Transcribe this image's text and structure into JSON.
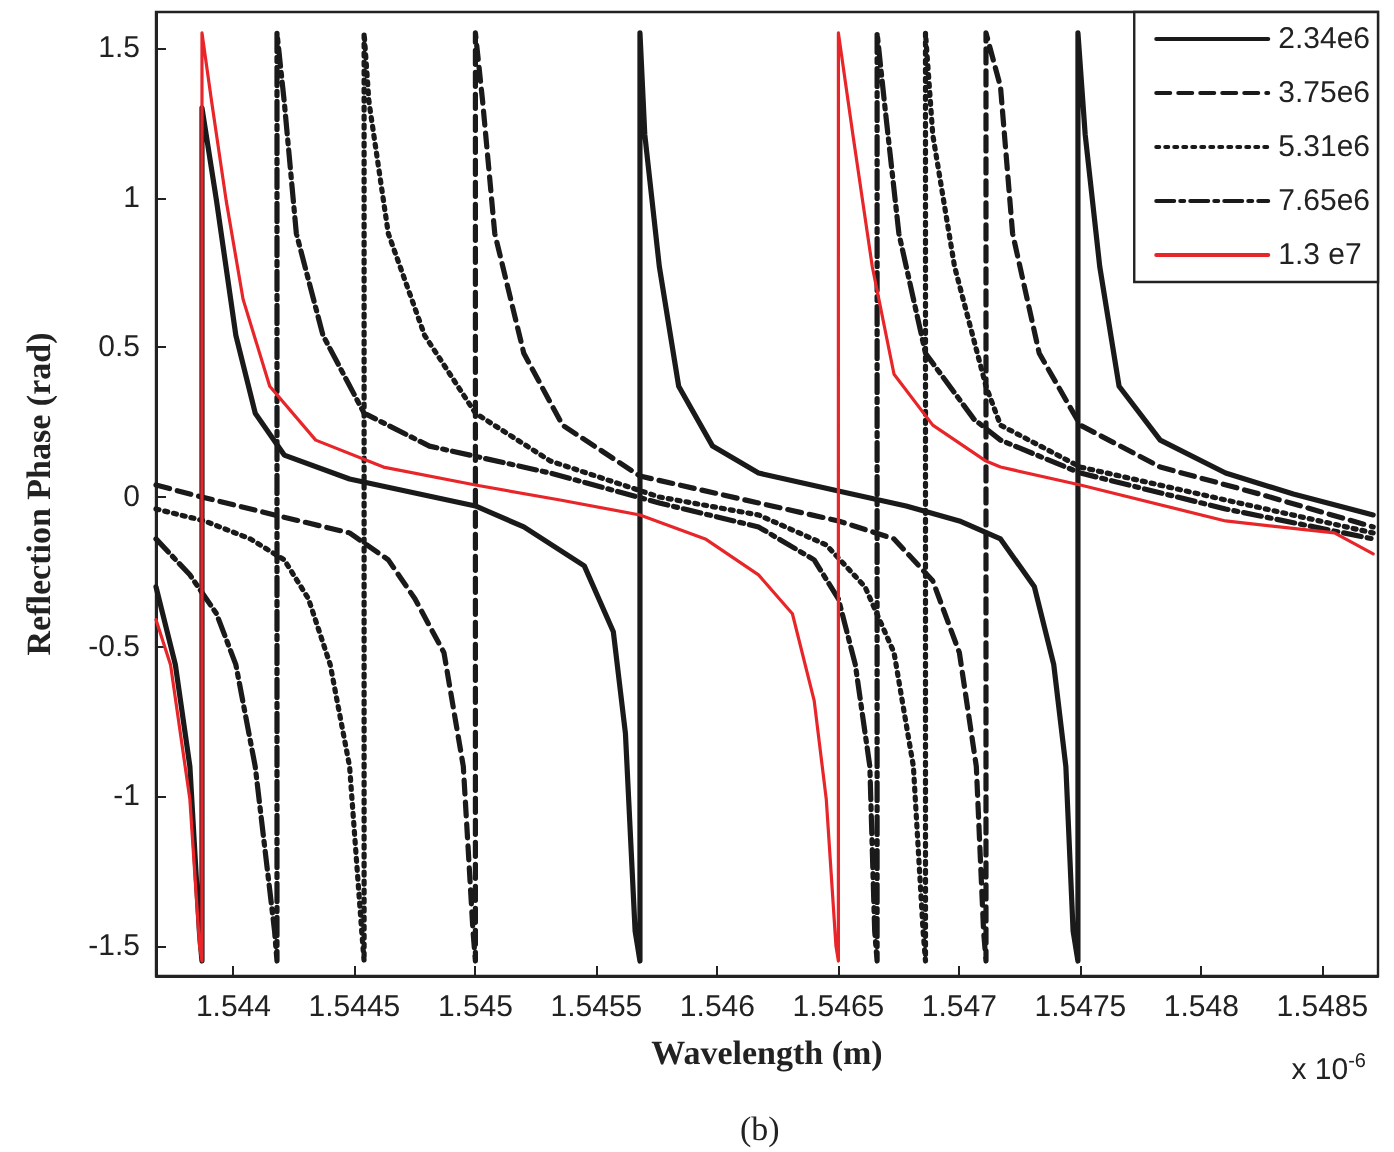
{
  "chart_data": {
    "type": "line",
    "xlabel": "Wavelength (m)",
    "ylabel": "Reflection Phase (rad)",
    "annotations": [
      "x 10$^{-6}$",
      "(b)"
    ],
    "xlim": [
      1.54368,
      1.54873
    ],
    "ylim": [
      -1.6,
      1.62
    ],
    "xticks": [
      1.544,
      1.5445,
      1.545,
      1.5455,
      1.546,
      1.5465,
      1.547,
      1.5475,
      1.548,
      1.5485
    ],
    "yticks": [
      -1.5,
      -1,
      -0.5,
      0,
      0.5,
      1,
      1.5
    ],
    "grid": false,
    "legend": "top right",
    "marker": "none",
    "series": [
      {
        "name": "2.34e6",
        "color": "#1a1a1a",
        "line_style": "solid",
        "x": [
          1.54368,
          1.54376,
          1.54382,
          1.54386,
          1.54387,
          1.54387,
          1.54393,
          1.54401,
          1.54409,
          1.54421,
          1.54448,
          1.545,
          1.5452,
          1.54545,
          1.54557,
          1.54562,
          1.54566,
          1.54568,
          1.54568,
          1.5457,
          1.54576,
          1.54584,
          1.54598,
          1.54617,
          1.5465,
          1.54678,
          1.547,
          1.54717,
          1.54731,
          1.54739,
          1.54744,
          1.54747,
          1.54749,
          1.54749,
          1.54752,
          1.54758,
          1.54766,
          1.54783,
          1.5481,
          1.54838,
          1.54871
        ],
        "values": [
          -0.3,
          -0.56,
          -0.9,
          -1.46,
          -1.55,
          1.3,
          0.99,
          0.54,
          0.28,
          0.14,
          0.06,
          -0.03,
          -0.1,
          -0.23,
          -0.45,
          -0.79,
          -1.45,
          -1.55,
          1.55,
          1.21,
          0.77,
          0.37,
          0.17,
          0.08,
          0.02,
          -0.03,
          -0.08,
          -0.14,
          -0.3,
          -0.56,
          -0.9,
          -1.45,
          -1.55,
          1.55,
          1.21,
          0.77,
          0.37,
          0.19,
          0.08,
          0.01,
          -0.06
        ]
      },
      {
        "name": "3.75e6",
        "color": "#1a1a1a",
        "line_style": "dashed",
        "x": [
          1.54368,
          1.54382,
          1.54417,
          1.54448,
          1.54464,
          1.54475,
          1.54487,
          1.54495,
          1.54499,
          1.545,
          1.545,
          1.54503,
          1.54508,
          1.5452,
          1.54536,
          1.54568,
          1.54617,
          1.5465,
          1.54673,
          1.54689,
          1.547,
          1.54707,
          1.5471,
          1.54711,
          1.54711,
          1.54717,
          1.54722,
          1.54733,
          1.5475,
          1.54783,
          1.54824,
          1.54871
        ],
        "values": [
          0.04,
          0.01,
          -0.06,
          -0.12,
          -0.21,
          -0.34,
          -0.52,
          -0.9,
          -1.45,
          -1.55,
          1.55,
          1.32,
          0.88,
          0.48,
          0.24,
          0.07,
          -0.02,
          -0.08,
          -0.14,
          -0.28,
          -0.52,
          -0.9,
          -1.45,
          -1.55,
          1.55,
          1.37,
          0.88,
          0.48,
          0.24,
          0.1,
          0.01,
          -0.1
        ]
      },
      {
        "name": "5.31e6",
        "color": "#1a1a1a",
        "line_style": "dotted",
        "x": [
          1.54368,
          1.54388,
          1.54407,
          1.54421,
          1.54431,
          1.5444,
          1.54448,
          1.54453,
          1.54454,
          1.54454,
          1.54456,
          1.54464,
          1.54479,
          1.545,
          1.54531,
          1.54576,
          1.54617,
          1.54645,
          1.54661,
          1.54673,
          1.54681,
          1.54685,
          1.54686,
          1.54686,
          1.54689,
          1.54698,
          1.54711,
          1.54717,
          1.5475,
          1.5481,
          1.54871
        ],
        "values": [
          -0.04,
          -0.08,
          -0.14,
          -0.21,
          -0.34,
          -0.56,
          -0.9,
          -1.45,
          -1.55,
          1.55,
          1.32,
          0.88,
          0.54,
          0.28,
          0.12,
          0,
          -0.06,
          -0.16,
          -0.3,
          -0.52,
          -0.9,
          -1.45,
          -1.55,
          1.55,
          1.21,
          0.77,
          0.37,
          0.24,
          0.1,
          -0.01,
          -0.12
        ]
      },
      {
        "name": "7.65e6",
        "color": "#1a1a1a",
        "line_style": "dashdot",
        "x": [
          1.54368,
          1.54382,
          1.54393,
          1.54401,
          1.54409,
          1.54417,
          1.54418,
          1.54418,
          1.54421,
          1.54426,
          1.54437,
          1.54454,
          1.54481,
          1.54531,
          1.54576,
          1.54617,
          1.5464,
          1.5465,
          1.54657,
          1.54663,
          1.54665,
          1.54666,
          1.54666,
          1.54669,
          1.54675,
          1.54686,
          1.54706,
          1.54717,
          1.5475,
          1.5481,
          1.54871
        ],
        "values": [
          -0.14,
          -0.26,
          -0.39,
          -0.56,
          -0.9,
          -1.45,
          -1.55,
          1.55,
          1.32,
          0.88,
          0.54,
          0.28,
          0.17,
          0.08,
          -0.02,
          -0.1,
          -0.21,
          -0.34,
          -0.56,
          -0.9,
          -1.45,
          -1.55,
          1.55,
          1.32,
          0.88,
          0.48,
          0.26,
          0.19,
          0.08,
          -0.04,
          -0.14
        ]
      },
      {
        "name": "1.3 e7",
        "color": "#e8262a",
        "line_style": "solid",
        "x": [
          1.54368,
          1.54374,
          1.54382,
          1.54386,
          1.54387,
          1.54387,
          1.54391,
          1.54397,
          1.54404,
          1.54415,
          1.54434,
          1.54462,
          1.545,
          1.54535,
          1.54568,
          1.54595,
          1.54617,
          1.54631,
          1.5464,
          1.54645,
          1.54649,
          1.5465,
          1.5465,
          1.54656,
          1.54664,
          1.54673,
          1.54689,
          1.54711,
          1.54717,
          1.5475,
          1.5481,
          1.54855,
          1.54871
        ],
        "values": [
          -0.41,
          -0.56,
          -1.01,
          -1.5,
          -1.55,
          1.55,
          1.32,
          0.99,
          0.66,
          0.37,
          0.19,
          0.1,
          0.04,
          -0.01,
          -0.06,
          -0.14,
          -0.26,
          -0.39,
          -0.68,
          -1.01,
          -1.5,
          -1.55,
          1.55,
          1.21,
          0.77,
          0.41,
          0.24,
          0.12,
          0.1,
          0.04,
          -0.08,
          -0.12,
          -0.19
        ]
      }
    ]
  }
}
